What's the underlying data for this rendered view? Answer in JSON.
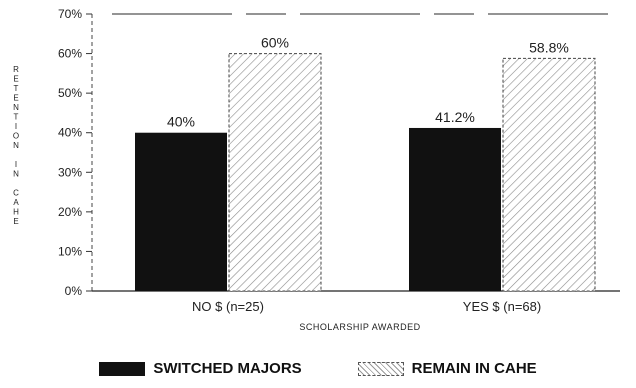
{
  "chart_data": {
    "type": "bar",
    "xlabel": "SCHOLARSHIP AWARDED",
    "ylabel": "RETENTION IN CAHE",
    "categories": [
      "NO $ (n=25)",
      "YES $ (n=68)"
    ],
    "ylim": [
      0,
      70
    ],
    "yticks": [
      0,
      10,
      20,
      30,
      40,
      50,
      60,
      70
    ],
    "ytick_labels": [
      "0%",
      "10%",
      "20%",
      "30%",
      "40%",
      "50%",
      "60%",
      "70%"
    ],
    "series": [
      {
        "name": "SWITCHED MAJORS",
        "values": [
          40,
          41.2
        ],
        "value_labels": [
          "40%",
          "41.2%"
        ],
        "color": "#111111",
        "style": "solid"
      },
      {
        "name": "REMAIN IN CAHE",
        "values": [
          60,
          58.8
        ],
        "value_labels": [
          "60%",
          "58.8%"
        ],
        "color": "#999999",
        "style": "hatched"
      }
    ],
    "legend_position": "bottom",
    "grid": false
  }
}
